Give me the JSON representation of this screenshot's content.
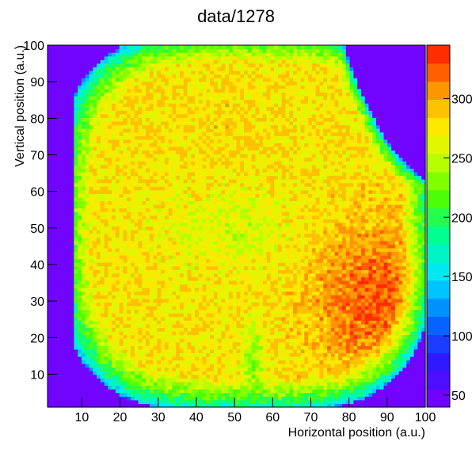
{
  "chart_data": {
    "type": "heatmap",
    "title": "data/1278",
    "xlabel": "Horizontal position (a.u.)",
    "ylabel": "Vertical position (a.u.)",
    "xlim": [
      1,
      100
    ],
    "ylim": [
      1,
      100
    ],
    "bins": [
      100,
      100
    ],
    "x_ticks": [
      10,
      20,
      30,
      40,
      50,
      60,
      70,
      80,
      90,
      100
    ],
    "y_ticks": [
      10,
      20,
      30,
      40,
      50,
      60,
      70,
      80,
      90,
      100
    ],
    "z_range": [
      40,
      345
    ],
    "z_ticks": [
      50,
      100,
      150,
      200,
      250,
      300
    ],
    "colormap": "rainbow (violet to red)",
    "grid": false,
    "palette_position": "right",
    "description_of_distribution": {
      "background_outside_beam": 45,
      "edge_ring": 120,
      "bulk_plateau": 275,
      "upper_left_lobe_peak": 285,
      "lower_right_hot_region": 325,
      "low_stripe_near_x55_y15": 230,
      "low_spot_near_x45_y80": 250
    }
  }
}
